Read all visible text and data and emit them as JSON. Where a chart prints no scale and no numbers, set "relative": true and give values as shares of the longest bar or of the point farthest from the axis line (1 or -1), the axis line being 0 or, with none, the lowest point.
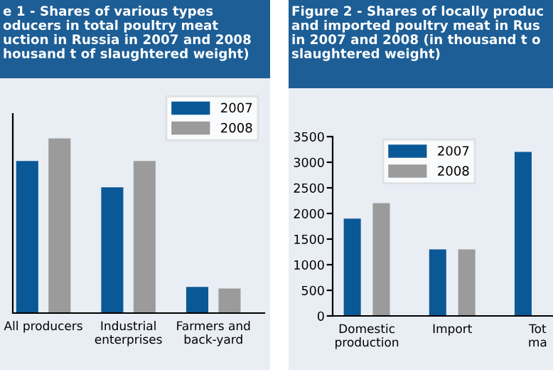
{
  "chart_data": [
    {
      "type": "bar",
      "title": "e 1 - Shares of various types\noducers in total poultry meat\nuction in Russia in 2007 and 2008\nhousand t of slaughtered weight)",
      "categories": [
        "All producers",
        "Industrial\nenterprises",
        "Farmers and\nback-yard"
      ],
      "relative": true,
      "legend": "top right",
      "series": [
        {
          "name": "2007",
          "color": "#0b5896",
          "values": [
            0.87,
            0.72,
            0.15
          ]
        },
        {
          "name": "2008",
          "color": "#9b9b9b",
          "values": [
            1,
            0.87,
            0.14
          ]
        }
      ]
    },
    {
      "type": "bar",
      "title": "Figure 2 - Shares of locally produc\nand imported poultry meat in Rus\nin 2007 and 2008 (in thousand t o\nslaughtered weight)",
      "categories": [
        "Domestic\nproduction",
        "Import",
        "Tot\nma"
      ],
      "ylim": [
        0,
        3500
      ],
      "yticks": [
        0,
        500,
        1000,
        1500,
        2000,
        2500,
        3000,
        3500
      ],
      "legend": "top left",
      "series": [
        {
          "name": "2007",
          "color": "#0b5896",
          "values": [
            1900,
            1300,
            3200
          ]
        },
        {
          "name": "2008",
          "color": "#9b9b9b",
          "values": [
            2200,
            1300,
            null
          ]
        }
      ]
    }
  ]
}
